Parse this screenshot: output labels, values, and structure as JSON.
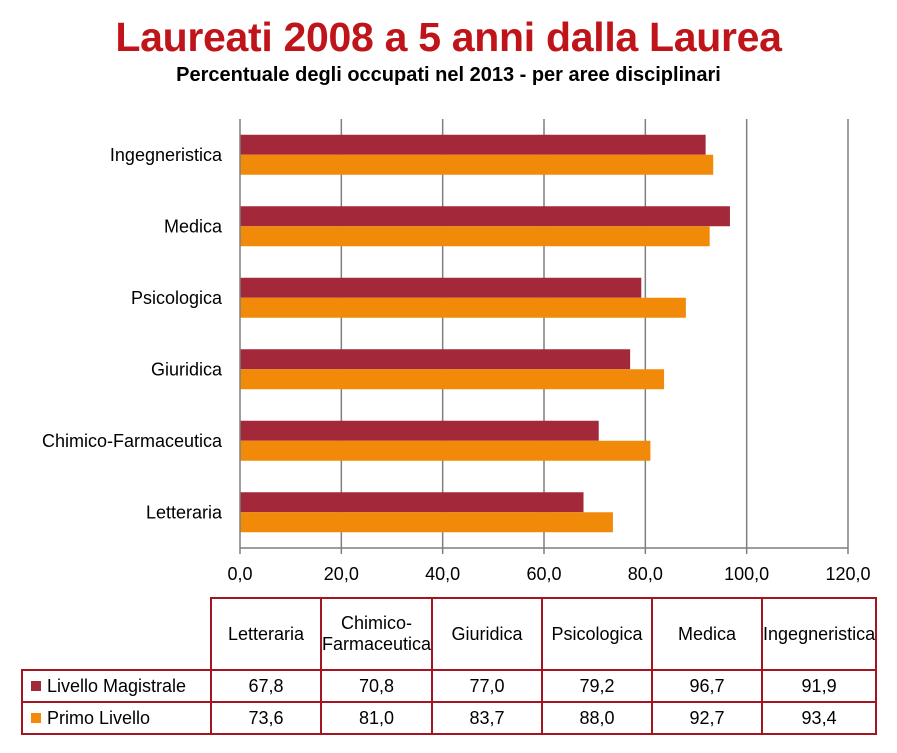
{
  "colors": {
    "magistrale": "#a3293a",
    "primo": "#f08a08",
    "grid": "#7f7f7f",
    "title": "#c0141b"
  },
  "chart_data": {
    "type": "bar",
    "orientation": "horizontal",
    "title": "Laureati 2008 a 5 anni dalla Laurea",
    "subtitle": "Percentuale degli occupati nel 2013 - per aree disciplinari",
    "categories": [
      "Letteraria",
      "Chimico-Farmaceutica",
      "Giuridica",
      "Psicologica",
      "Medica",
      "Ingegneristica"
    ],
    "series": [
      {
        "name": "Livello Magistrale",
        "values": [
          67.8,
          70.8,
          77.0,
          79.2,
          96.7,
          91.9
        ]
      },
      {
        "name": "Primo Livello",
        "values": [
          73.6,
          81.0,
          83.7,
          88.0,
          92.7,
          93.4
        ]
      }
    ],
    "xlim": [
      0,
      120
    ],
    "x_ticks": [
      "0,0",
      "20,0",
      "40,0",
      "60,0",
      "80,0",
      "100,0",
      "120,0"
    ],
    "grid": true,
    "legend": "data table below chart"
  },
  "table": {
    "headers": [
      "Letteraria",
      "Chimico-Farmaceutica",
      "Giuridica",
      "Psicologica",
      "Medica",
      "Ingegneristica"
    ],
    "rows": [
      {
        "label": "Livello Magistrale",
        "values": [
          "67,8",
          "70,8",
          "77,0",
          "79,2",
          "96,7",
          "91,9"
        ]
      },
      {
        "label": "Primo Livello",
        "values": [
          "73,6",
          "81,0",
          "83,7",
          "88,0",
          "92,7",
          "93,4"
        ]
      }
    ]
  }
}
